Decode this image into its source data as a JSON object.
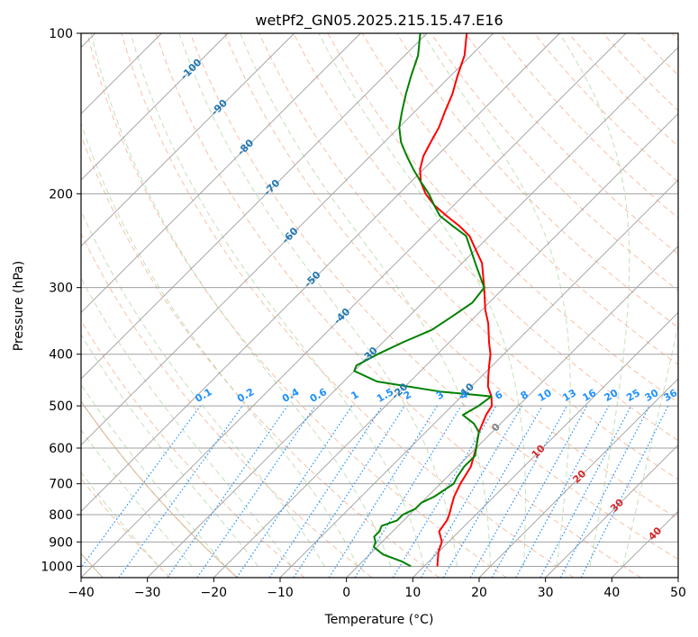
{
  "chart_data": {
    "type": "line",
    "title": "wetPf2_GN05.2025.215.15.47.E16",
    "xlabel": "Temperature (°C)",
    "ylabel": "Pressure (hPa)",
    "xlim": [
      -40,
      50
    ],
    "ylim": [
      1050,
      100
    ],
    "y_scale": "log",
    "skew": true,
    "x_ticks": [
      -40,
      -30,
      -20,
      -10,
      0,
      10,
      20,
      30,
      40,
      50
    ],
    "y_ticks": [
      100,
      200,
      300,
      400,
      500,
      600,
      700,
      800,
      900,
      1000
    ],
    "grid": true,
    "series": [
      {
        "color": "#ff0000",
        "points": [
          [
            1000,
            12
          ],
          [
            970,
            11
          ],
          [
            940,
            10
          ],
          [
            900,
            9
          ],
          [
            860,
            7
          ],
          [
            820,
            6.5
          ],
          [
            800,
            6
          ],
          [
            770,
            5
          ],
          [
            740,
            4
          ],
          [
            700,
            3
          ],
          [
            650,
            2
          ],
          [
            600,
            0
          ],
          [
            560,
            -2
          ],
          [
            520,
            -3.5
          ],
          [
            500,
            -4
          ],
          [
            480,
            -5.5
          ],
          [
            460,
            -7.5
          ],
          [
            440,
            -9
          ],
          [
            420,
            -10.5
          ],
          [
            400,
            -12
          ],
          [
            380,
            -14
          ],
          [
            350,
            -17
          ],
          [
            330,
            -19.5
          ],
          [
            300,
            -23
          ],
          [
            270,
            -27
          ],
          [
            240,
            -33
          ],
          [
            230,
            -36
          ],
          [
            220,
            -39.5
          ],
          [
            210,
            -43
          ],
          [
            200,
            -46
          ],
          [
            190,
            -48.5
          ],
          [
            180,
            -50.5
          ],
          [
            170,
            -52
          ],
          [
            160,
            -53
          ],
          [
            150,
            -54
          ],
          [
            140,
            -55.5
          ],
          [
            130,
            -57
          ],
          [
            120,
            -59
          ],
          [
            110,
            -61
          ],
          [
            100,
            -64
          ]
        ]
      },
      {
        "color": "#008000",
        "points": [
          [
            1000,
            8
          ],
          [
            980,
            6
          ],
          [
            950,
            2
          ],
          [
            920,
            -0.5
          ],
          [
            900,
            -1
          ],
          [
            880,
            -2
          ],
          [
            860,
            -2
          ],
          [
            840,
            -2.5
          ],
          [
            820,
            -1
          ],
          [
            800,
            -1
          ],
          [
            780,
            0
          ],
          [
            760,
            0
          ],
          [
            740,
            1
          ],
          [
            700,
            2
          ],
          [
            680,
            1.5
          ],
          [
            650,
            1
          ],
          [
            620,
            1
          ],
          [
            600,
            0
          ],
          [
            580,
            -1
          ],
          [
            560,
            -2
          ],
          [
            540,
            -4
          ],
          [
            520,
            -7
          ],
          [
            500,
            -6
          ],
          [
            480,
            -5.5
          ],
          [
            470,
            -14
          ],
          [
            450,
            -25
          ],
          [
            430,
            -30
          ],
          [
            420,
            -30.5
          ],
          [
            400,
            -29
          ],
          [
            380,
            -27
          ],
          [
            360,
            -24.5
          ],
          [
            340,
            -23.5
          ],
          [
            320,
            -22.5
          ],
          [
            300,
            -23
          ],
          [
            270,
            -28
          ],
          [
            240,
            -33.5
          ],
          [
            230,
            -37
          ],
          [
            220,
            -40.5
          ],
          [
            210,
            -43
          ],
          [
            200,
            -45.5
          ],
          [
            190,
            -48.5
          ],
          [
            180,
            -51.5
          ],
          [
            170,
            -54.5
          ],
          [
            160,
            -57.5
          ],
          [
            150,
            -60
          ],
          [
            140,
            -62
          ],
          [
            130,
            -64
          ],
          [
            120,
            -66
          ],
          [
            110,
            -68
          ],
          [
            100,
            -71
          ]
        ]
      }
    ],
    "isotherm_labels": [
      "-100",
      "-90",
      "-80",
      "-70",
      "-60",
      "-50",
      "-40",
      "-30",
      "-20",
      "-10"
    ],
    "isotherm_label_color": "#1f77b4",
    "mixing_ratio_labels": [
      "0.1",
      "0.2",
      "0.4",
      "0.6",
      "1",
      "1.5",
      "2",
      "3",
      "4",
      "6",
      "8",
      "10",
      "13",
      "16",
      "20",
      "25",
      "30",
      "36"
    ],
    "mixing_ratio_label_color": "#1e90ff",
    "isotherm_zero_label": "0",
    "isotherm_warm_labels": [
      "10",
      "20",
      "30",
      "40"
    ],
    "isotherm_warm_label_color": "#d62728"
  }
}
